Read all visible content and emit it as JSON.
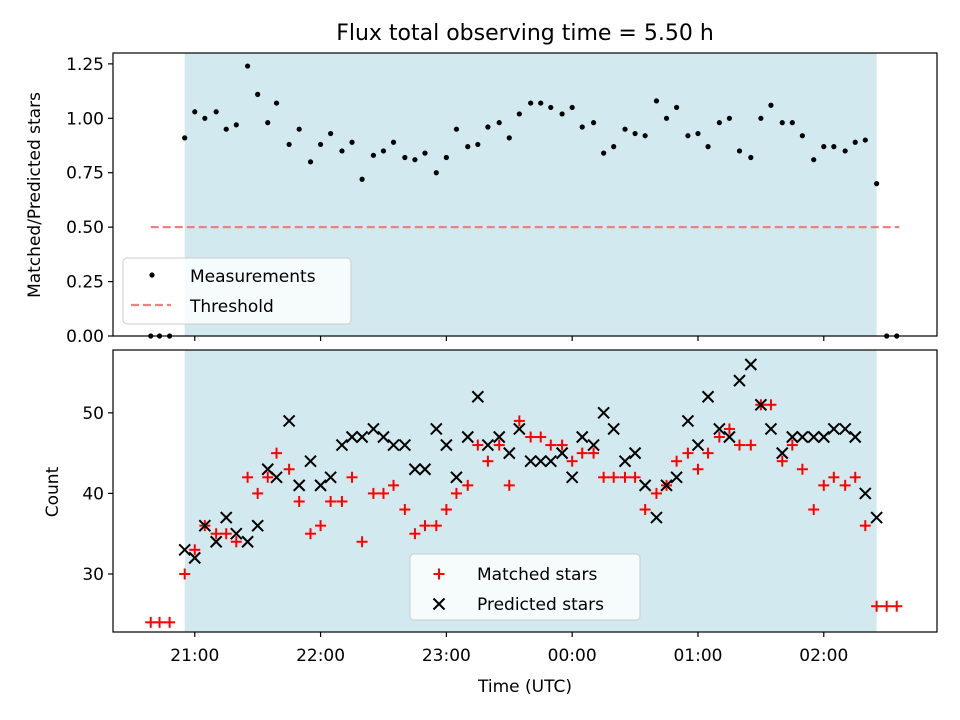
{
  "chart_data": {
    "type": "scatter",
    "title": "Flux total observing time = 5.50 h",
    "xlabel": "Time (UTC)",
    "x_tick_labels": [
      "21:00",
      "22:00",
      "23:00",
      "00:00",
      "01:00",
      "02:00"
    ],
    "x_ticks_hours": [
      21,
      22,
      23,
      24,
      25,
      26
    ],
    "xlim_hours": [
      20.35,
      26.9
    ],
    "observing_window_hours": [
      20.92,
      26.42
    ],
    "shade_color": "#d3e9f0",
    "top": {
      "ylabel": "Matched/Predicted stars",
      "ylim": [
        0,
        1.3
      ],
      "yticks": [
        0.0,
        0.25,
        0.5,
        0.75,
        1.0,
        1.25
      ],
      "ytick_labels": [
        "0.00",
        "0.25",
        "0.50",
        "0.75",
        "1.00",
        "1.25"
      ],
      "threshold": {
        "name": "Threshold",
        "value": 0.5,
        "x_range": [
          20.65,
          26.6
        ],
        "color": "#f08080"
      },
      "measurements": {
        "name": "Measurements",
        "color": "#000000",
        "x": [
          20.65,
          20.72,
          20.8,
          20.92,
          21.0,
          21.08,
          21.17,
          21.25,
          21.33,
          21.42,
          21.5,
          21.58,
          21.65,
          21.75,
          21.83,
          21.92,
          22.0,
          22.08,
          22.17,
          22.25,
          22.33,
          22.42,
          22.5,
          22.58,
          22.67,
          22.75,
          22.83,
          22.92,
          23.0,
          23.08,
          23.17,
          23.25,
          23.33,
          23.42,
          23.5,
          23.58,
          23.67,
          23.75,
          23.83,
          23.92,
          24.0,
          24.08,
          24.17,
          24.25,
          24.33,
          24.42,
          24.5,
          24.58,
          24.67,
          24.75,
          24.83,
          24.92,
          25.0,
          25.08,
          25.17,
          25.25,
          25.33,
          25.42,
          25.5,
          25.58,
          25.67,
          25.75,
          25.83,
          25.92,
          26.0,
          26.08,
          26.17,
          26.25,
          26.33,
          26.42,
          26.5,
          26.58
        ],
        "y": [
          0.0,
          0.0,
          0.0,
          0.91,
          1.03,
          1.0,
          1.03,
          0.95,
          0.97,
          1.24,
          1.11,
          0.98,
          1.07,
          0.88,
          0.95,
          0.8,
          0.88,
          0.93,
          0.85,
          0.89,
          0.72,
          0.83,
          0.85,
          0.89,
          0.82,
          0.81,
          0.84,
          0.75,
          0.82,
          0.95,
          0.87,
          0.88,
          0.96,
          0.98,
          0.91,
          1.02,
          1.07,
          1.07,
          1.05,
          1.02,
          1.05,
          0.96,
          0.98,
          0.84,
          0.87,
          0.95,
          0.93,
          0.92,
          1.08,
          1.0,
          1.05,
          0.92,
          0.93,
          0.87,
          0.98,
          1.0,
          0.85,
          0.82,
          1.0,
          1.06,
          0.98,
          0.98,
          0.92,
          0.81,
          0.87,
          0.87,
          0.85,
          0.89,
          0.9,
          0.7,
          0.0,
          0.0
        ]
      }
    },
    "bottom": {
      "ylabel": "Count",
      "ylim": [
        22.8,
        57.8
      ],
      "yticks": [
        30,
        40,
        50
      ],
      "ytick_labels": [
        "30",
        "40",
        "50"
      ],
      "series": [
        {
          "name": "Matched stars",
          "marker": "plus",
          "color": "#ff0000",
          "x": [
            20.65,
            20.72,
            20.8,
            20.92,
            21.0,
            21.08,
            21.17,
            21.25,
            21.33,
            21.42,
            21.5,
            21.58,
            21.65,
            21.75,
            21.83,
            21.92,
            22.0,
            22.08,
            22.17,
            22.25,
            22.33,
            22.42,
            22.5,
            22.58,
            22.67,
            22.75,
            22.83,
            22.92,
            23.0,
            23.08,
            23.17,
            23.25,
            23.33,
            23.42,
            23.5,
            23.58,
            23.67,
            23.75,
            23.83,
            23.92,
            24.0,
            24.08,
            24.17,
            24.25,
            24.33,
            24.42,
            24.5,
            24.58,
            24.67,
            24.75,
            24.83,
            24.92,
            25.0,
            25.08,
            25.17,
            25.25,
            25.33,
            25.42,
            25.5,
            25.58,
            25.67,
            25.75,
            25.83,
            25.92,
            26.0,
            26.08,
            26.17,
            26.25,
            26.33,
            26.42,
            26.5,
            26.58
          ],
          "y": [
            24,
            24,
            24,
            30,
            33,
            36,
            35,
            35,
            34,
            42,
            40,
            42,
            45,
            43,
            39,
            35,
            36,
            39,
            39,
            42,
            34,
            40,
            40,
            41,
            38,
            35,
            36,
            36,
            38,
            40,
            41,
            46,
            44,
            46,
            41,
            49,
            47,
            47,
            46,
            46,
            44,
            45,
            45,
            42,
            42,
            42,
            42,
            38,
            40,
            41,
            44,
            45,
            43,
            45,
            47,
            48,
            46,
            46,
            51,
            51,
            44,
            46,
            43,
            38,
            41,
            42,
            41,
            42,
            36,
            26,
            26,
            26
          ]
        },
        {
          "name": "Predicted stars",
          "marker": "x",
          "color": "#000000",
          "x": [
            20.92,
            21.0,
            21.08,
            21.17,
            21.25,
            21.33,
            21.42,
            21.5,
            21.58,
            21.65,
            21.75,
            21.83,
            21.92,
            22.0,
            22.08,
            22.17,
            22.25,
            22.33,
            22.42,
            22.5,
            22.58,
            22.67,
            22.75,
            22.83,
            22.92,
            23.0,
            23.08,
            23.17,
            23.25,
            23.33,
            23.42,
            23.5,
            23.58,
            23.67,
            23.75,
            23.83,
            23.92,
            24.0,
            24.08,
            24.17,
            24.25,
            24.33,
            24.42,
            24.5,
            24.58,
            24.67,
            24.75,
            24.83,
            24.92,
            25.0,
            25.08,
            25.17,
            25.25,
            25.33,
            25.42,
            25.5,
            25.58,
            25.67,
            25.75,
            25.83,
            25.92,
            26.0,
            26.08,
            26.17,
            26.25,
            26.33,
            26.42
          ],
          "y": [
            33,
            32,
            36,
            34,
            37,
            35,
            34,
            36,
            43,
            42,
            49,
            41,
            44,
            41,
            42,
            46,
            47,
            47,
            48,
            47,
            46,
            46,
            43,
            43,
            48,
            46,
            42,
            47,
            52,
            46,
            47,
            45,
            48,
            44,
            44,
            44,
            45,
            42,
            47,
            46,
            50,
            48,
            44,
            45,
            41,
            37,
            41,
            42,
            49,
            46,
            52,
            48,
            47,
            54,
            56,
            51,
            48,
            45,
            47,
            47,
            47,
            47,
            48,
            48,
            47,
            40,
            37
          ]
        }
      ]
    }
  }
}
